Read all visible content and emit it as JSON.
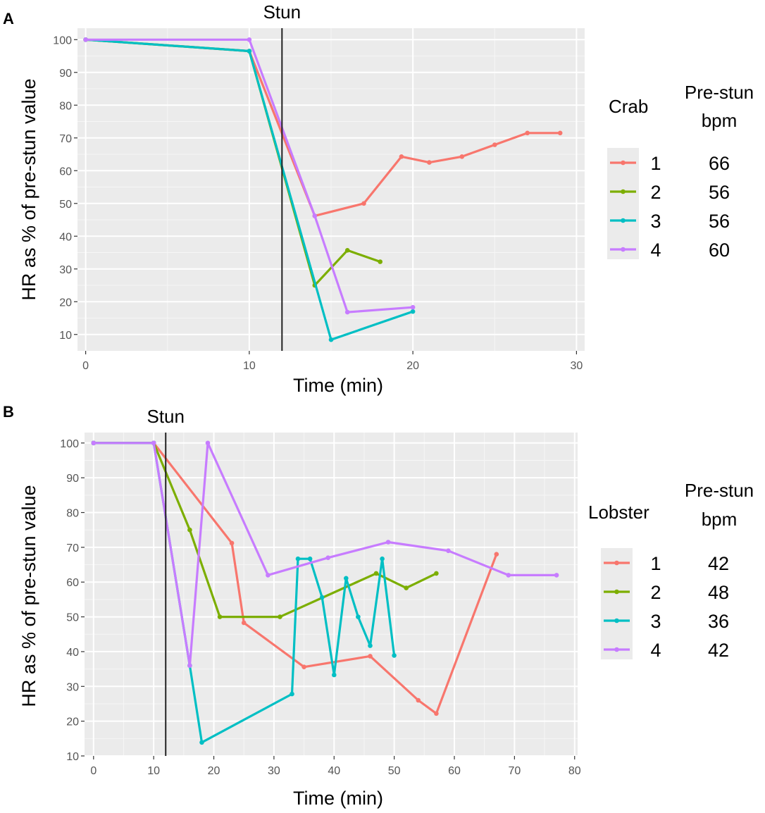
{
  "chart_data": [
    {
      "type": "line",
      "panel": "A",
      "stun_label": "Stun",
      "stun_x": 12,
      "xlabel": "Time (min)",
      "ylabel": "HR as % of pre-stun value",
      "xlim": [
        -0.5,
        30.5
      ],
      "ylim": [
        5,
        103.5
      ],
      "xticks": [
        0,
        10,
        20,
        30
      ],
      "yticks": [
        10,
        20,
        30,
        40,
        50,
        60,
        70,
        80,
        90,
        100
      ],
      "legend_title": "Crab",
      "bpm_header": [
        "Pre-stun",
        "bpm"
      ],
      "series": [
        {
          "name": "1",
          "bpm": "66",
          "color": "#F8766D",
          "x": [
            0,
            10,
            14,
            17,
            19.3,
            21,
            23,
            25,
            27,
            29
          ],
          "y": [
            100,
            96.5,
            46.2,
            50,
            64.3,
            62.5,
            64.3,
            67.9,
            71.5,
            71.5
          ]
        },
        {
          "name": "2",
          "bpm": "56",
          "color": "#7CAE00",
          "x": [
            0,
            10,
            14,
            16,
            18
          ],
          "y": [
            100,
            96.5,
            25,
            35.7,
            32.2
          ]
        },
        {
          "name": "3",
          "bpm": "56",
          "color": "#00BFC4",
          "x": [
            0,
            10,
            15,
            20
          ],
          "y": [
            100,
            96.5,
            8.4,
            17
          ]
        },
        {
          "name": "4",
          "bpm": "60",
          "color": "#C77CFF",
          "x": [
            0,
            10,
            14,
            16,
            20
          ],
          "y": [
            100,
            100,
            46.2,
            16.8,
            18.3
          ]
        }
      ]
    },
    {
      "type": "line",
      "panel": "B",
      "stun_label": "Stun",
      "stun_x": 12,
      "xlabel": "Time (min)",
      "ylabel": "HR as % of pre-stun value",
      "xlim": [
        -1.5,
        80.5
      ],
      "ylim": [
        10,
        103
      ],
      "xticks": [
        0,
        10,
        20,
        30,
        40,
        50,
        60,
        70,
        80
      ],
      "yticks": [
        10,
        20,
        30,
        40,
        50,
        60,
        70,
        80,
        90,
        100
      ],
      "legend_title": "Lobster",
      "bpm_header": [
        "Pre-stun",
        "bpm"
      ],
      "series": [
        {
          "name": "1",
          "bpm": "42",
          "color": "#F8766D",
          "x": [
            0,
            10,
            23,
            25,
            35,
            46,
            54,
            57,
            67
          ],
          "y": [
            100,
            100,
            71.2,
            48.3,
            35.6,
            38.7,
            26,
            22.2,
            68
          ]
        },
        {
          "name": "2",
          "bpm": "48",
          "color": "#7CAE00",
          "x": [
            0,
            10,
            16,
            21,
            31,
            47,
            52,
            57
          ],
          "y": [
            100,
            100,
            75,
            50,
            50,
            62.5,
            58.3,
            62.5
          ]
        },
        {
          "name": "3",
          "bpm": "36",
          "color": "#00BFC4",
          "x": [
            0,
            10,
            16,
            18,
            33,
            34,
            36,
            38,
            40,
            42,
            44,
            46,
            48,
            50
          ],
          "y": [
            100,
            100,
            36,
            13.9,
            27.8,
            66.7,
            66.7,
            55.6,
            33.3,
            61.1,
            50,
            41.7,
            66.7,
            38.9
          ]
        },
        {
          "name": "4",
          "bpm": "42",
          "color": "#C77CFF",
          "x": [
            0,
            10,
            16,
            19,
            29,
            39,
            49,
            59,
            69,
            77
          ],
          "y": [
            100,
            100,
            36,
            100,
            62,
            67,
            71.5,
            69,
            62,
            62
          ]
        }
      ]
    }
  ]
}
